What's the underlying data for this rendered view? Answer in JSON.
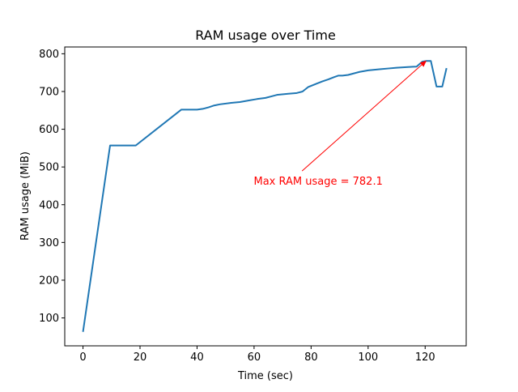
{
  "chart_data": {
    "type": "line",
    "title": "RAM usage over Time",
    "xlabel": "Time (sec)",
    "ylabel": "RAM usage (MiB)",
    "xlim": [
      -6.4,
      134.4
    ],
    "ylim": [
      26,
      818
    ],
    "xticks": [
      0,
      20,
      40,
      60,
      80,
      100,
      120
    ],
    "yticks": [
      100,
      200,
      300,
      400,
      500,
      600,
      700,
      800
    ],
    "grid": false,
    "series": [
      {
        "color": "#1f77b4",
        "x": [
          0,
          9.5,
          18.5,
          34.5,
          38,
          40,
          42,
          44,
          46,
          48,
          52,
          55,
          58,
          61,
          64,
          66,
          68,
          72,
          75,
          77,
          79,
          82,
          84,
          86,
          88,
          89.5,
          91,
          93,
          97,
          100,
          104,
          107,
          110,
          114,
          117,
          119,
          120.5,
          122,
          124,
          126,
          127.5
        ],
        "y": [
          63,
          557,
          557,
          652,
          652,
          652,
          654,
          658,
          663,
          666,
          670,
          672,
          676,
          680,
          683,
          687,
          691,
          694,
          696,
          700,
          712,
          721,
          727,
          732,
          738,
          742,
          742,
          744,
          752,
          756,
          759,
          761,
          763,
          765,
          766,
          779,
          781,
          781,
          713,
          713,
          762
        ]
      }
    ],
    "annotation": {
      "text": "Max RAM usage = 782.1",
      "color": "#ff0000",
      "point": [
        120.5,
        782.1
      ],
      "text_position": [
        82.5,
        485
      ]
    }
  }
}
